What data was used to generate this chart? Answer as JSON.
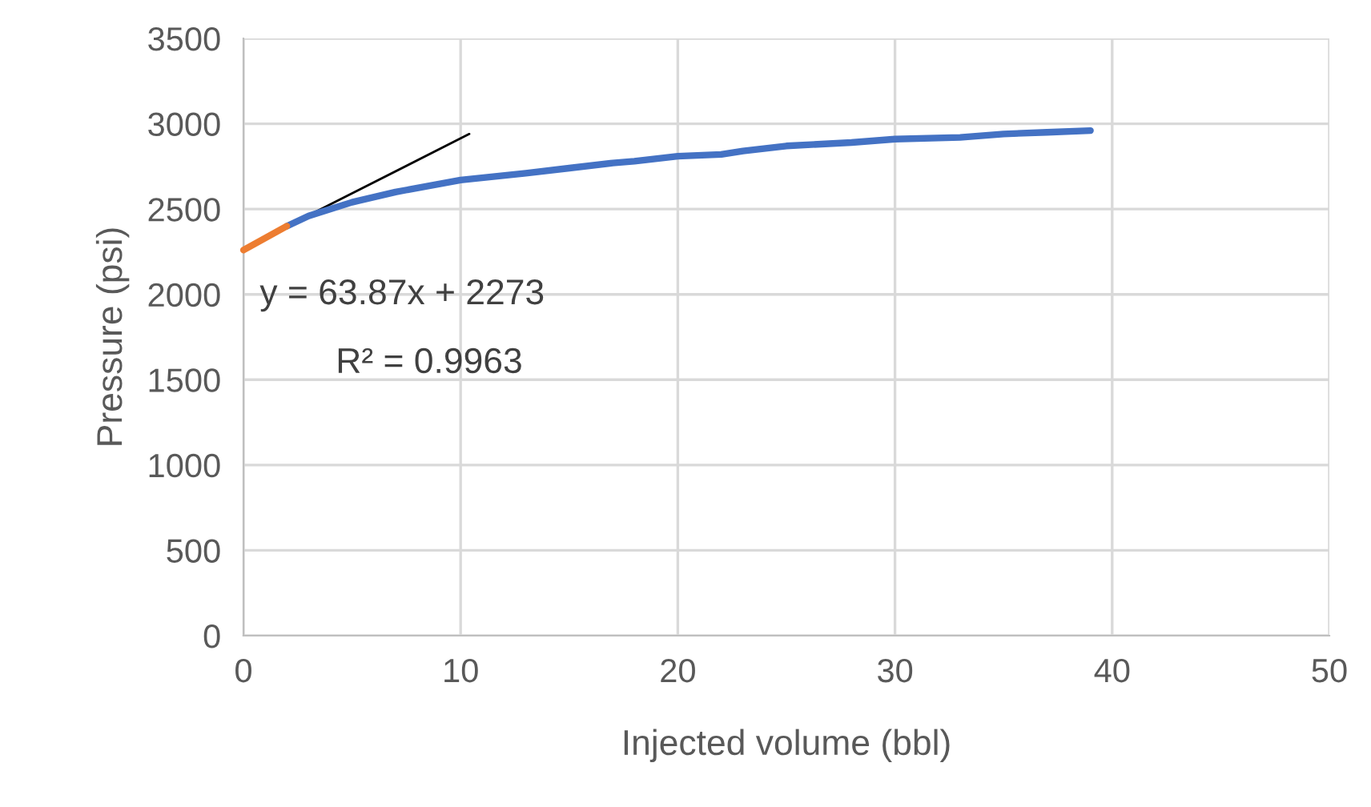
{
  "chart_data": {
    "type": "line",
    "xlabel": "Injected volume (bbl)",
    "ylabel": "Pressure (psi)",
    "xlim": [
      0,
      50
    ],
    "xticks": [
      0,
      10,
      20,
      30,
      40,
      50
    ],
    "ylim": [
      0,
      3500
    ],
    "yticks": [
      0,
      500,
      1000,
      1500,
      2000,
      2500,
      3000,
      3500
    ],
    "grid": true,
    "series": [
      {
        "color": "#4472c4",
        "x": [
          2,
          3,
          5,
          7,
          10,
          13,
          15,
          17,
          18,
          20,
          22,
          23,
          25,
          28,
          30,
          33,
          35,
          37,
          39
        ],
        "values": [
          2400,
          2460,
          2540,
          2600,
          2670,
          2710,
          2740,
          2770,
          2780,
          2810,
          2820,
          2840,
          2870,
          2890,
          2910,
          2920,
          2940,
          2950,
          2960
        ]
      },
      {
        "color": "#ed7d31",
        "x": [
          0,
          1,
          2
        ],
        "values": [
          2260,
          2330,
          2400
        ]
      },
      {
        "color": "#000000",
        "x": [
          0,
          10.4
        ],
        "values": [
          2270,
          2940
        ]
      }
    ],
    "annotations": [
      "y = 63.87x + 2273",
      "R² = 0.9963"
    ]
  }
}
